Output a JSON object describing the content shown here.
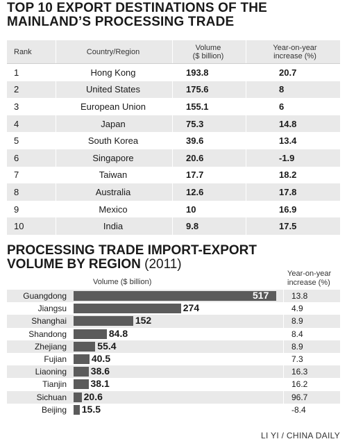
{
  "top_title_line1": "TOP 10 EXPORT DESTINATIONS OF THE",
  "top_title_line2": "MAINLAND’S PROCESSING TRADE",
  "table": {
    "headers": {
      "rank": "Rank",
      "country": "Country/Region",
      "volume_line1": "Volume",
      "volume_line2": "($ billion)",
      "yoy_line1": "Year-on-year",
      "yoy_line2": "increase (%)"
    },
    "rows": [
      {
        "rank": "1",
        "country": "Hong Kong",
        "volume": "193.8",
        "yoy": "20.7"
      },
      {
        "rank": "2",
        "country": "United States",
        "volume": "175.6",
        "yoy": "8"
      },
      {
        "rank": "3",
        "country": "European Union",
        "volume": "155.1",
        "yoy": "6"
      },
      {
        "rank": "4",
        "country": "Japan",
        "volume": "75.3",
        "yoy": "14.8"
      },
      {
        "rank": "5",
        "country": "South Korea",
        "volume": "39.6",
        "yoy": "13.4"
      },
      {
        "rank": "6",
        "country": "Singapore",
        "volume": "20.6",
        "yoy": "-1.9"
      },
      {
        "rank": "7",
        "country": "Taiwan",
        "volume": "17.7",
        "yoy": "18.2"
      },
      {
        "rank": "8",
        "country": "Australia",
        "volume": "12.6",
        "yoy": "17.8"
      },
      {
        "rank": "9",
        "country": "Mexico",
        "volume": "10",
        "yoy": "16.9"
      },
      {
        "rank": "10",
        "country": "India",
        "volume": "9.8",
        "yoy": "17.5"
      }
    ]
  },
  "bottom_title_line1": "PROCESSING TRADE IMPORT-EXPORT",
  "bottom_title_line2": "VOLUME BY REGION",
  "bottom_title_year": "(2011)",
  "chart_data": {
    "type": "bar",
    "orientation": "horizontal",
    "title": "PROCESSING TRADE IMPORT-EXPORT VOLUME BY REGION (2011)",
    "xlabel": "Volume ($ billion)",
    "yoy_header_line1": "Year-on-year",
    "yoy_header_line2": "increase (%)",
    "categories": [
      "Guangdong",
      "Jiangsu",
      "Shanghai",
      "Shandong",
      "Zhejiang",
      "Fujian",
      "Liaoning",
      "Tianjin",
      "Sichuan",
      "Beijing"
    ],
    "values": [
      517,
      274,
      152,
      84.8,
      55.4,
      40.5,
      38.6,
      38.1,
      20.6,
      15.5
    ],
    "value_labels": [
      "517",
      "274",
      "152",
      "84.8",
      "55.4",
      "40.5",
      "38.6",
      "38.1",
      "20.6",
      "15.5"
    ],
    "yoy_labels": [
      "13.8",
      "4.9",
      "8.9",
      "8.4",
      "8.9",
      "7.3",
      "16.3",
      "16.2",
      "96.7",
      "-8.4"
    ],
    "xlim": [
      0,
      517
    ],
    "bar_color": "#5b5b5b",
    "stripe_color": "#e9e9e9"
  },
  "credit": "LI YI / CHINA DAILY"
}
